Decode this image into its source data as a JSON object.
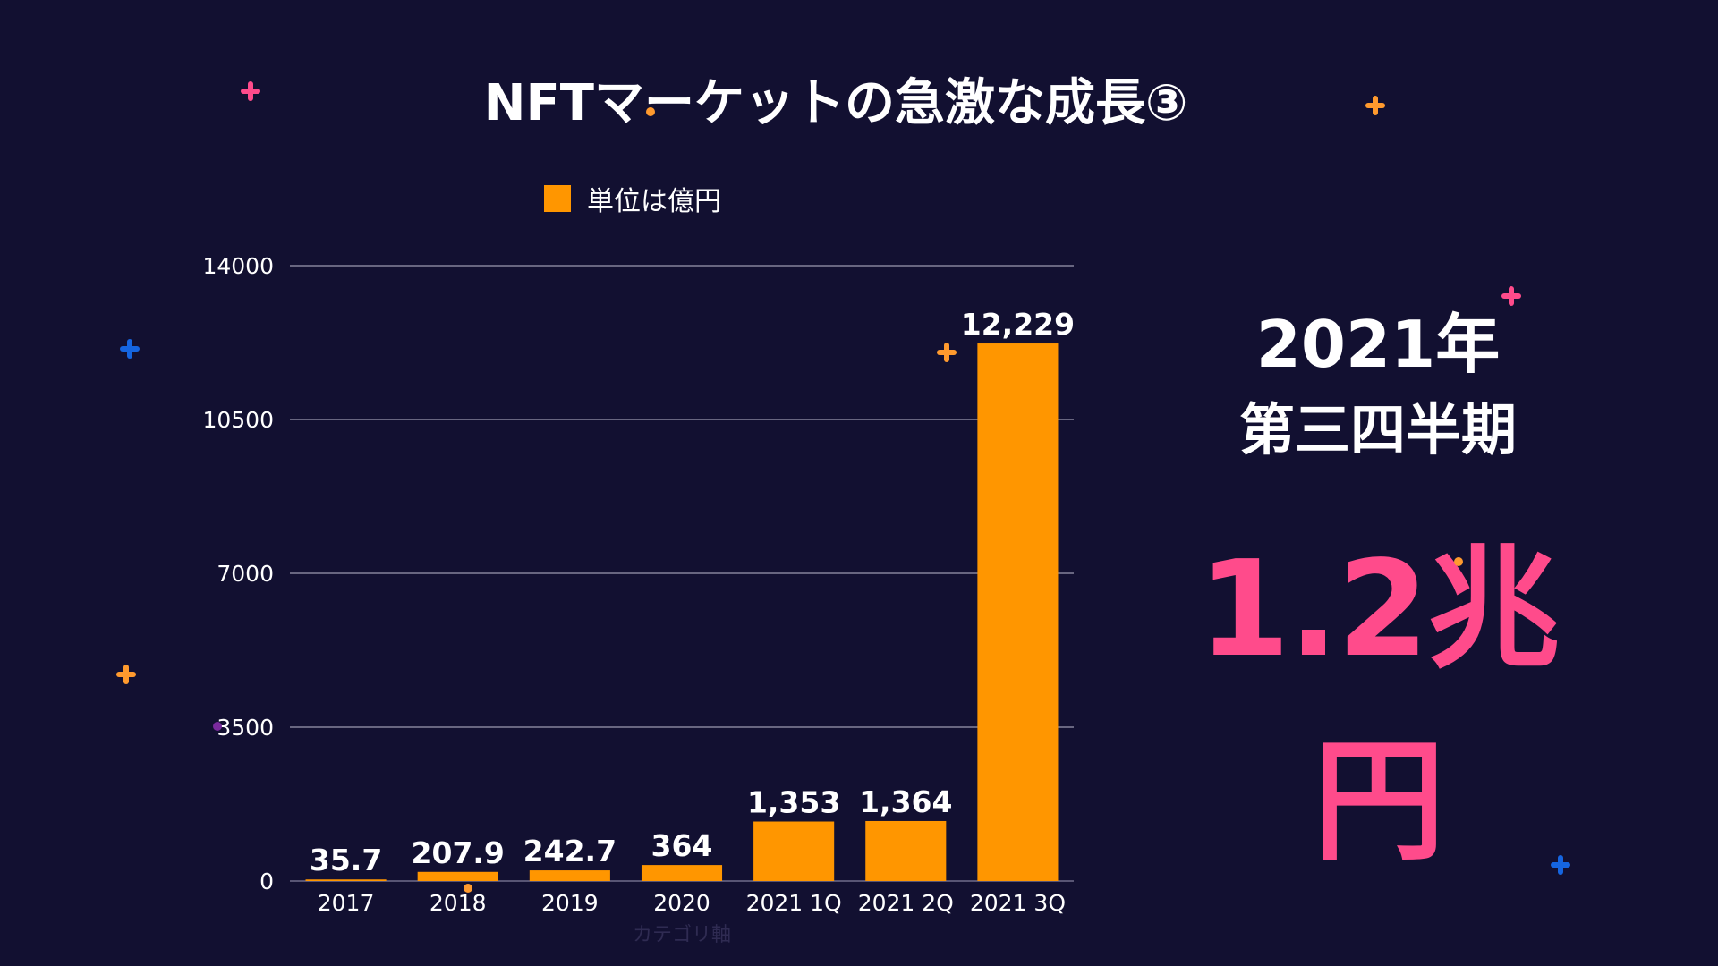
{
  "title": "NFTマーケットの急激な成長③",
  "highlight": {
    "year": "2021年",
    "quarter": "第三四半期",
    "value": "1.2兆円"
  },
  "colors": {
    "background": "#121031",
    "bar": "#ff9600",
    "accent": "#ff4b8b",
    "sparkle_pink": "#ff4b8b",
    "sparkle_orange": "#ff9a2e",
    "sparkle_blue": "#1565e0",
    "dot_purple": "#7a2a9e"
  },
  "chart_data": {
    "type": "bar",
    "title": "",
    "legend": [
      "単位は億円"
    ],
    "legend_position": "top",
    "categories": [
      "2017",
      "2018",
      "2019",
      "2020",
      "2021 1Q",
      "2021 2Q",
      "2021 3Q"
    ],
    "series": [
      {
        "name": "単位は億円",
        "values": [
          35.7,
          207.9,
          242.7,
          364,
          1353,
          1364,
          12229
        ]
      }
    ],
    "data_labels": [
      "35.7",
      "207.9",
      "242.7",
      "364",
      "1,353",
      "1,364",
      "12,229"
    ],
    "xlabel": "カテゴリ軸",
    "ylabel": "",
    "ylim": [
      0,
      14000
    ],
    "yticks": [
      0,
      3500,
      7000,
      10500,
      14000
    ],
    "ytick_labels": [
      "0",
      "3500",
      "7000",
      "10500",
      "14000"
    ],
    "grid": true
  }
}
